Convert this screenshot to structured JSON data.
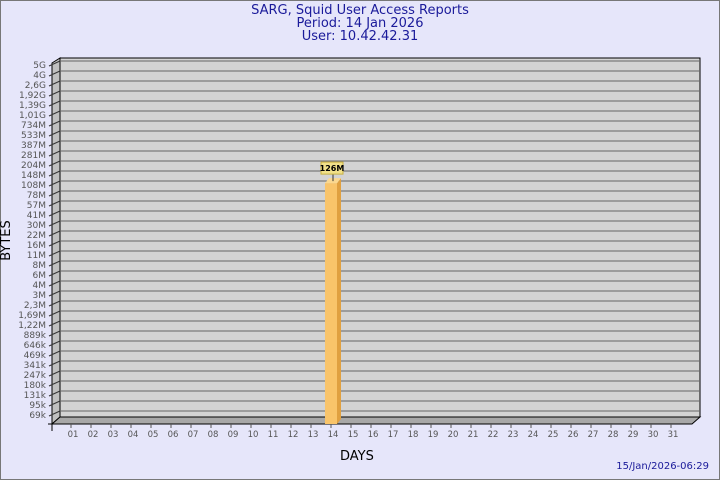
{
  "header": {
    "title": "SARG, Squid User Access Reports",
    "period": "Period: 14 Jan 2026",
    "user": "User: 10.42.42.31"
  },
  "footer": {
    "timestamp": "15/Jan/2026-06:29"
  },
  "chart_data": {
    "type": "bar",
    "title": "SARG, Squid User Access Reports",
    "xlabel": "DAYS",
    "ylabel": "BYTES",
    "y_scale": "log",
    "grid": true,
    "y_ticks": [
      "5G",
      "4G",
      "2,6G",
      "1,92G",
      "1,39G",
      "1,01G",
      "734M",
      "533M",
      "387M",
      "281M",
      "204M",
      "148M",
      "108M",
      "78M",
      "57M",
      "41M",
      "30M",
      "22M",
      "16M",
      "11M",
      "8M",
      "6M",
      "4M",
      "3M",
      "2,3M",
      "1,69M",
      "1,22M",
      "889k",
      "646k",
      "469k",
      "341k",
      "247k",
      "180k",
      "131k",
      "95k",
      "69k"
    ],
    "categories": [
      "01",
      "02",
      "03",
      "04",
      "05",
      "06",
      "07",
      "08",
      "09",
      "10",
      "11",
      "12",
      "13",
      "14",
      "15",
      "16",
      "17",
      "18",
      "19",
      "20",
      "21",
      "22",
      "23",
      "24",
      "25",
      "26",
      "27",
      "28",
      "29",
      "30",
      "31"
    ],
    "values": [
      null,
      null,
      null,
      null,
      null,
      null,
      null,
      null,
      null,
      null,
      null,
      null,
      null,
      126000000,
      null,
      null,
      null,
      null,
      null,
      null,
      null,
      null,
      null,
      null,
      null,
      null,
      null,
      null,
      null,
      null,
      null
    ],
    "data_labels": {
      "14": "126M"
    },
    "colors": {
      "bar": "#f9c46a",
      "bar_side": "#e0a040",
      "wall": "#d3d3d3",
      "label_bg": "#f0e08a"
    }
  }
}
